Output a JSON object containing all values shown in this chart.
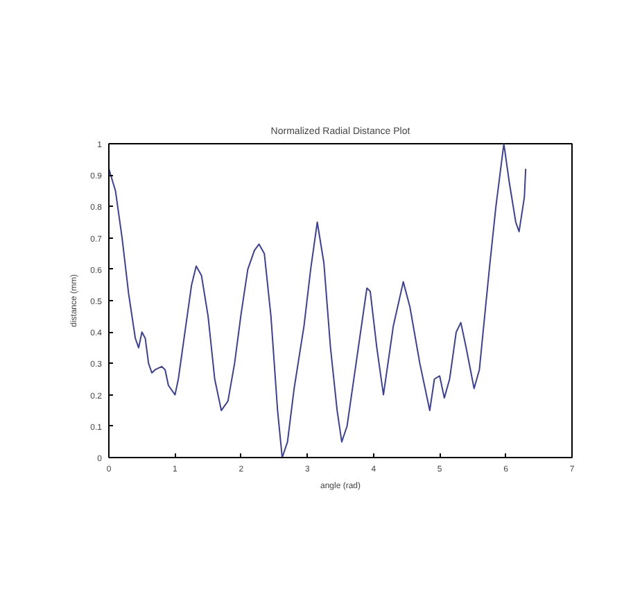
{
  "chart_data": {
    "type": "line",
    "title": "Normalized Radial Distance Plot",
    "xlabel": "angle (rad)",
    "ylabel": "distance (mm)",
    "xlim": [
      0,
      7
    ],
    "ylim": [
      0,
      1
    ],
    "xticks": [
      0,
      1,
      2,
      3,
      4,
      5,
      6,
      7
    ],
    "yticks": [
      0,
      0.1,
      0.2,
      0.3,
      0.4,
      0.5,
      0.6,
      0.7,
      0.8,
      0.9,
      1
    ],
    "grid": false,
    "marker": "none",
    "line_style": "solid",
    "series": [
      {
        "color": "#3b3f9e",
        "x": [
          0,
          0.1,
          0.2,
          0.3,
          0.4,
          0.45,
          0.5,
          0.55,
          0.6,
          0.65,
          0.7,
          0.8,
          0.85,
          0.9,
          1.0,
          1.05,
          1.15,
          1.25,
          1.32,
          1.4,
          1.5,
          1.6,
          1.7,
          1.8,
          1.9,
          2.0,
          2.1,
          2.2,
          2.27,
          2.35,
          2.45,
          2.55,
          2.62,
          2.7,
          2.8,
          2.95,
          3.05,
          3.15,
          3.25,
          3.35,
          3.45,
          3.52,
          3.6,
          3.75,
          3.9,
          3.95,
          4.05,
          4.15,
          4.3,
          4.45,
          4.55,
          4.7,
          4.85,
          4.92,
          5.0,
          5.07,
          5.15,
          5.25,
          5.32,
          5.4,
          5.52,
          5.6,
          5.75,
          5.85,
          5.97,
          6.05,
          6.15,
          6.2,
          6.28,
          6.3
        ],
        "values": [
          0.92,
          0.85,
          0.7,
          0.52,
          0.38,
          0.35,
          0.4,
          0.38,
          0.3,
          0.27,
          0.28,
          0.29,
          0.28,
          0.23,
          0.2,
          0.25,
          0.4,
          0.55,
          0.61,
          0.58,
          0.45,
          0.25,
          0.15,
          0.18,
          0.3,
          0.46,
          0.6,
          0.66,
          0.68,
          0.65,
          0.45,
          0.15,
          0.0,
          0.05,
          0.22,
          0.42,
          0.6,
          0.75,
          0.62,
          0.35,
          0.15,
          0.05,
          0.1,
          0.32,
          0.54,
          0.53,
          0.35,
          0.2,
          0.42,
          0.56,
          0.48,
          0.3,
          0.15,
          0.25,
          0.26,
          0.19,
          0.25,
          0.4,
          0.43,
          0.35,
          0.22,
          0.28,
          0.6,
          0.8,
          1.0,
          0.88,
          0.75,
          0.72,
          0.83,
          0.92
        ]
      }
    ]
  }
}
